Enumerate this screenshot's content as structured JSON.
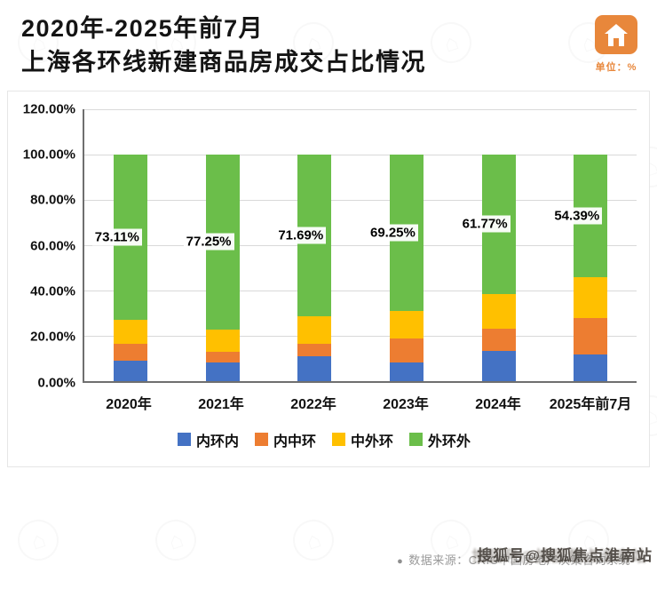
{
  "header": {
    "title_line1": "2020年-2025年前7月",
    "title_line2": "上海各环线新建商品房成交占比情况",
    "unit_label": "单位：%"
  },
  "chart_data": {
    "type": "bar",
    "stacked": true,
    "title": "2020年-2025年前7月上海各环线新建商品房成交占比情况",
    "unit": "%",
    "categories": [
      "2020年",
      "2021年",
      "2022年",
      "2023年",
      "2024年",
      "2025年前7月"
    ],
    "series": [
      {
        "name": "内环内",
        "color": "#4472C4",
        "values": [
          9.0,
          8.0,
          11.0,
          8.0,
          13.0,
          11.6
        ]
      },
      {
        "name": "内中环",
        "color": "#ED7D31",
        "values": [
          7.5,
          4.8,
          5.3,
          10.8,
          10.0,
          16.0
        ]
      },
      {
        "name": "中外环",
        "color": "#FFC000",
        "values": [
          10.39,
          9.95,
          12.01,
          11.95,
          15.23,
          18.01
        ]
      },
      {
        "name": "外环外",
        "color": "#6BBE4A",
        "values": [
          73.11,
          77.25,
          71.69,
          69.25,
          61.77,
          54.39
        ]
      }
    ],
    "data_labels": [
      "73.11%",
      "77.25%",
      "71.69%",
      "69.25%",
      "61.77%",
      "54.39%"
    ],
    "data_label_series": "外环外",
    "y_ticks": [
      "120.00%",
      "100.00%",
      "80.00%",
      "60.00%",
      "40.00%",
      "20.00%",
      "0.00%"
    ],
    "ylim": [
      0,
      120
    ],
    "grid": true,
    "legend_position": "bottom"
  },
  "footer": {
    "source": "数据来源：CRIC中国房地产决策咨询系统"
  },
  "watermark": {
    "sohu": "搜狐号@搜狐焦点淮南站"
  }
}
